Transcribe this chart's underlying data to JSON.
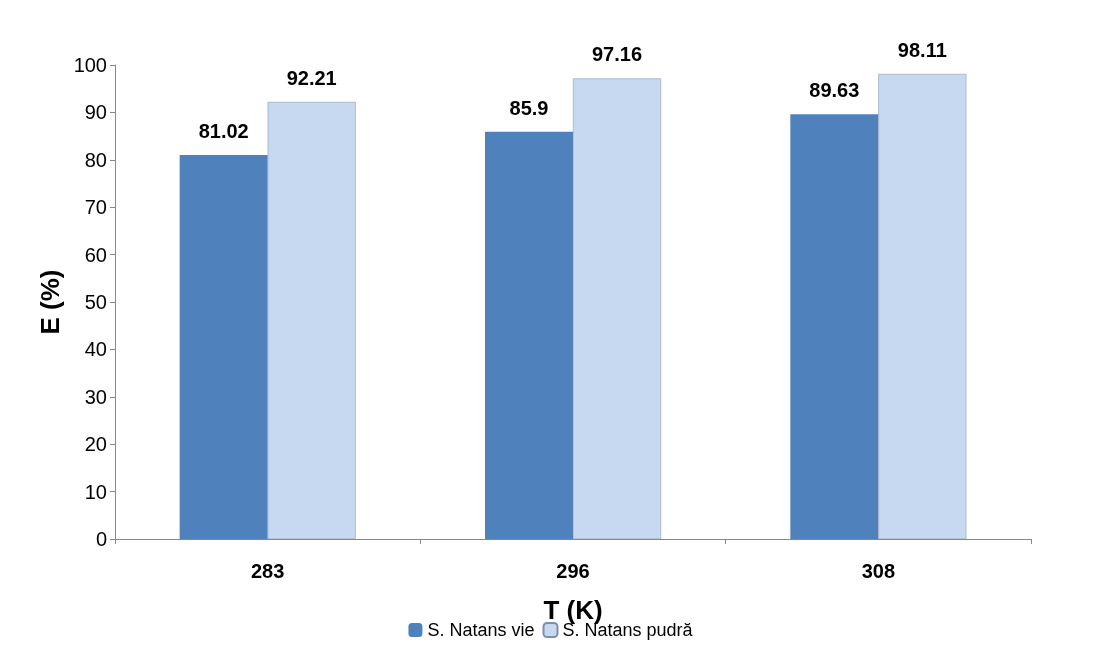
{
  "chart_data": {
    "type": "bar",
    "xlabel": "T (K)",
    "ylabel": "E (%)",
    "categories": [
      "283",
      "296",
      "308"
    ],
    "series": [
      {
        "name": "S. Natans vie",
        "color": "#4f81bd",
        "values": [
          81.02,
          85.9,
          89.63
        ]
      },
      {
        "name": "S. Natans pudră",
        "color": "#c6d9f1",
        "values": [
          92.21,
          97.16,
          98.11
        ]
      }
    ],
    "ylim": [
      0,
      100
    ],
    "yticks": [
      0,
      10,
      20,
      30,
      40,
      50,
      60,
      70,
      80,
      90,
      100
    ],
    "data_labels": true,
    "grid": false,
    "legend": "bottom"
  }
}
